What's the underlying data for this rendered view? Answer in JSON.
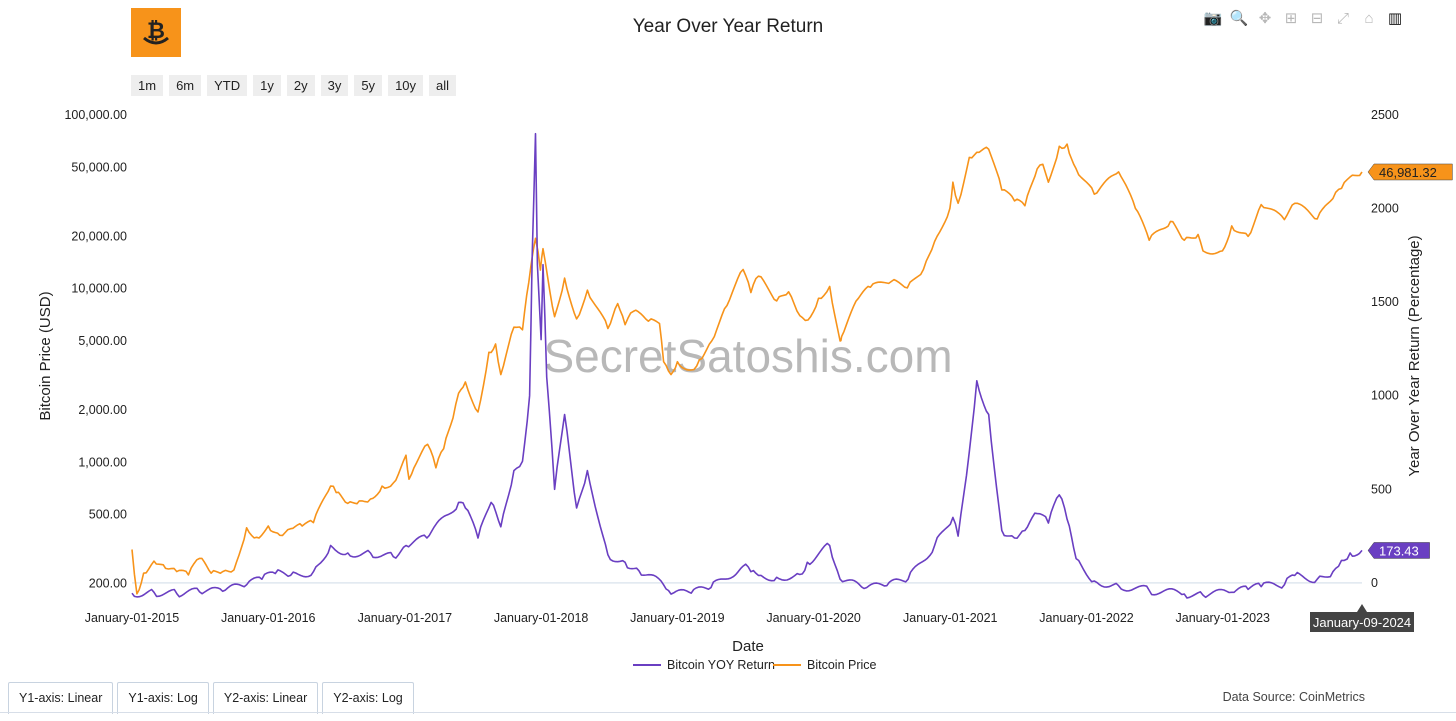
{
  "logo": {
    "name": "bitcoin-smile-logo",
    "color": "#f7931a"
  },
  "modebar": [
    {
      "name": "camera-icon",
      "glyph": "📷"
    },
    {
      "name": "zoom-icon",
      "glyph": "🔍"
    },
    {
      "name": "pan-icon",
      "glyph": "✥"
    },
    {
      "name": "zoom-in-icon",
      "glyph": "⊞"
    },
    {
      "name": "zoom-out-icon",
      "glyph": "⊟"
    },
    {
      "name": "autoscale-icon",
      "glyph": "⤢"
    },
    {
      "name": "home-icon",
      "glyph": "⌂"
    },
    {
      "name": "plotly-logo-icon",
      "glyph": "▥"
    }
  ],
  "range_buttons": [
    "1m",
    "6m",
    "YTD",
    "1y",
    "2y",
    "3y",
    "5y",
    "10y",
    "all"
  ],
  "tabs": [
    "Y1-axis: Linear",
    "Y1-axis: Log",
    "Y2-axis: Linear",
    "Y2-axis: Log"
  ],
  "source": "Data Source: CoinMetrics",
  "watermark": "SecretSatoshis.com",
  "colors": {
    "price": "#f7931a",
    "yoy": "#6a3fc2",
    "axisline": "#dfe7ef"
  },
  "chart_data": {
    "type": "line",
    "title": "Year Over Year Return",
    "xlabel": "Date",
    "ylabel": "Bitcoin Price (USD)",
    "y2label": "Year Over Year Return (Percentage)",
    "x_range": [
      "2015-01-01",
      "2024-01-09"
    ],
    "x_ticks": [
      "January-01-2015",
      "January-01-2016",
      "January-01-2017",
      "January-01-2018",
      "January-01-2019",
      "January-01-2020",
      "January-01-2021",
      "January-01-2022",
      "January-01-2023"
    ],
    "y_scale": "log",
    "y_ticks": [
      200,
      500,
      1000,
      2000,
      5000,
      10000,
      20000,
      50000,
      100000
    ],
    "y_tick_labels": [
      "200.00",
      "500.00",
      "1,000.00",
      "2,000.00",
      "5,000.00",
      "10,000.00",
      "20,000.00",
      "50,000.00",
      "100,000.00"
    ],
    "y_range": [
      170,
      100000
    ],
    "y2_ticks": [
      0,
      500,
      1000,
      1500,
      2000,
      2500
    ],
    "y2_tick_labels": [
      "0",
      "500",
      "1000",
      "1500",
      "2000",
      "2500"
    ],
    "y2_range": [
      -70,
      2500
    ],
    "legend": [
      "Bitcoin YOY Return",
      "Bitcoin Price"
    ],
    "hover_x": "January-09-2024",
    "last_price_label": "46,981.32",
    "last_yoy_label": "173.43",
    "series": [
      {
        "name": "Bitcoin Price",
        "axis": "y1",
        "points": [
          [
            "2015-01-01",
            315
          ],
          [
            "2015-01-14",
            175
          ],
          [
            "2015-02-01",
            230
          ],
          [
            "2015-03-01",
            270
          ],
          [
            "2015-04-01",
            245
          ],
          [
            "2015-05-01",
            235
          ],
          [
            "2015-06-01",
            225
          ],
          [
            "2015-07-01",
            280
          ],
          [
            "2015-08-01",
            230
          ],
          [
            "2015-09-01",
            235
          ],
          [
            "2015-10-01",
            240
          ],
          [
            "2015-11-04",
            420
          ],
          [
            "2015-12-01",
            370
          ],
          [
            "2016-01-01",
            430
          ],
          [
            "2016-02-01",
            380
          ],
          [
            "2016-03-01",
            415
          ],
          [
            "2016-04-01",
            430
          ],
          [
            "2016-05-01",
            450
          ],
          [
            "2016-06-16",
            730
          ],
          [
            "2016-07-01",
            670
          ],
          [
            "2016-08-01",
            580
          ],
          [
            "2016-09-01",
            600
          ],
          [
            "2016-10-01",
            615
          ],
          [
            "2016-11-01",
            730
          ],
          [
            "2016-12-01",
            760
          ],
          [
            "2017-01-04",
            1100
          ],
          [
            "2017-01-12",
            800
          ],
          [
            "2017-02-01",
            990
          ],
          [
            "2017-03-03",
            1270
          ],
          [
            "2017-03-25",
            930
          ],
          [
            "2017-04-15",
            1200
          ],
          [
            "2017-05-10",
            1800
          ],
          [
            "2017-05-25",
            2500
          ],
          [
            "2017-06-12",
            2900
          ],
          [
            "2017-07-16",
            1950
          ],
          [
            "2017-08-14",
            4300
          ],
          [
            "2017-09-01",
            4800
          ],
          [
            "2017-09-15",
            3200
          ],
          [
            "2017-10-20",
            6000
          ],
          [
            "2017-11-12",
            5800
          ],
          [
            "2017-11-29",
            10900
          ],
          [
            "2017-12-17",
            19500
          ],
          [
            "2017-12-30",
            12800
          ],
          [
            "2018-01-06",
            17000
          ],
          [
            "2018-02-06",
            6900
          ],
          [
            "2018-03-05",
            11500
          ],
          [
            "2018-04-06",
            6700
          ],
          [
            "2018-05-05",
            9800
          ],
          [
            "2018-06-29",
            5900
          ],
          [
            "2018-07-25",
            8200
          ],
          [
            "2018-08-14",
            6200
          ],
          [
            "2018-09-05",
            7400
          ],
          [
            "2018-10-15",
            6500
          ],
          [
            "2018-11-14",
            6300
          ],
          [
            "2018-11-25",
            3800
          ],
          [
            "2018-12-15",
            3200
          ],
          [
            "2019-01-01",
            3800
          ],
          [
            "2019-02-07",
            3400
          ],
          [
            "2019-03-01",
            3900
          ],
          [
            "2019-04-03",
            5000
          ],
          [
            "2019-05-14",
            8000
          ],
          [
            "2019-06-26",
            12900
          ],
          [
            "2019-07-17",
            9500
          ],
          [
            "2019-08-06",
            11800
          ],
          [
            "2019-09-24",
            8500
          ],
          [
            "2019-10-26",
            9600
          ],
          [
            "2019-11-25",
            7000
          ],
          [
            "2019-12-17",
            6600
          ],
          [
            "2020-01-14",
            8800
          ],
          [
            "2020-02-13",
            10300
          ],
          [
            "2020-03-12",
            5000
          ],
          [
            "2020-03-16",
            5300
          ],
          [
            "2020-04-30",
            8800
          ],
          [
            "2020-06-01",
            10200
          ],
          [
            "2020-07-27",
            11000
          ],
          [
            "2020-09-08",
            10100
          ],
          [
            "2020-10-21",
            12900
          ],
          [
            "2020-11-20",
            18700
          ],
          [
            "2020-12-31",
            29000
          ],
          [
            "2021-01-08",
            41000
          ],
          [
            "2021-01-22",
            31000
          ],
          [
            "2021-02-21",
            57000
          ],
          [
            "2021-03-13",
            61000
          ],
          [
            "2021-04-14",
            63500
          ],
          [
            "2021-05-19",
            37000
          ],
          [
            "2021-06-22",
            32000
          ],
          [
            "2021-07-20",
            30000
          ],
          [
            "2021-08-22",
            49000
          ],
          [
            "2021-09-06",
            52000
          ],
          [
            "2021-09-21",
            41000
          ],
          [
            "2021-10-20",
            66000
          ],
          [
            "2021-11-10",
            68000
          ],
          [
            "2021-12-04",
            49000
          ],
          [
            "2022-01-22",
            35000
          ],
          [
            "2022-03-28",
            47000
          ],
          [
            "2022-05-12",
            29000
          ],
          [
            "2022-06-18",
            19000
          ],
          [
            "2022-08-14",
            24400
          ],
          [
            "2022-09-20",
            19000
          ],
          [
            "2022-10-27",
            20500
          ],
          [
            "2022-11-09",
            16500
          ],
          [
            "2022-12-31",
            16500
          ],
          [
            "2023-01-25",
            23000
          ],
          [
            "2023-03-10",
            20000
          ],
          [
            "2023-04-14",
            30500
          ],
          [
            "2023-06-15",
            25000
          ],
          [
            "2023-07-13",
            31000
          ],
          [
            "2023-09-11",
            25200
          ],
          [
            "2023-10-23",
            33000
          ],
          [
            "2023-11-15",
            37800
          ],
          [
            "2023-12-08",
            44000
          ],
          [
            "2024-01-09",
            46981.32
          ]
        ]
      },
      {
        "name": "Bitcoin YOY Return",
        "axis": "y2",
        "points": [
          [
            "2015-01-01",
            -55
          ],
          [
            "2015-03-01",
            -50
          ],
          [
            "2015-05-01",
            -57
          ],
          [
            "2015-07-01",
            -48
          ],
          [
            "2015-09-01",
            -45
          ],
          [
            "2015-11-04",
            -10
          ],
          [
            "2015-12-15",
            20
          ],
          [
            "2016-01-20",
            50
          ],
          [
            "2016-03-01",
            40
          ],
          [
            "2016-05-01",
            60
          ],
          [
            "2016-06-16",
            200
          ],
          [
            "2016-08-01",
            160
          ],
          [
            "2016-10-01",
            160
          ],
          [
            "2016-12-01",
            140
          ],
          [
            "2017-01-04",
            200
          ],
          [
            "2017-03-01",
            240
          ],
          [
            "2017-05-25",
            430
          ],
          [
            "2017-06-12",
            400
          ],
          [
            "2017-07-16",
            240
          ],
          [
            "2017-08-20",
            430
          ],
          [
            "2017-09-15",
            300
          ],
          [
            "2017-10-20",
            600
          ],
          [
            "2017-11-12",
            650
          ],
          [
            "2017-12-01",
            1000
          ],
          [
            "2017-12-08",
            1750
          ],
          [
            "2017-12-17",
            2400
          ],
          [
            "2017-12-22",
            1700
          ],
          [
            "2018-01-01",
            1300
          ],
          [
            "2018-01-06",
            1700
          ],
          [
            "2018-01-16",
            1100
          ],
          [
            "2018-02-06",
            500
          ],
          [
            "2018-03-05",
            900
          ],
          [
            "2018-04-06",
            400
          ],
          [
            "2018-05-05",
            600
          ],
          [
            "2018-06-29",
            150
          ],
          [
            "2018-08-14",
            110
          ],
          [
            "2018-09-20",
            65
          ],
          [
            "2018-11-25",
            -10
          ],
          [
            "2018-12-15",
            -60
          ],
          [
            "2019-02-07",
            -55
          ],
          [
            "2019-04-01",
            -25
          ],
          [
            "2019-06-26",
            90
          ],
          [
            "2019-07-17",
            60
          ],
          [
            "2019-08-06",
            40
          ],
          [
            "2019-09-24",
            30
          ],
          [
            "2019-11-25",
            45
          ],
          [
            "2019-12-15",
            110
          ],
          [
            "2020-02-13",
            200
          ],
          [
            "2020-03-12",
            20
          ],
          [
            "2020-05-15",
            -30
          ],
          [
            "2020-07-15",
            -15
          ],
          [
            "2020-09-10",
            20
          ],
          [
            "2020-11-20",
            200
          ],
          [
            "2021-01-08",
            350
          ],
          [
            "2021-01-22",
            250
          ],
          [
            "2021-02-21",
            700
          ],
          [
            "2021-03-13",
            1080
          ],
          [
            "2021-04-14",
            900
          ],
          [
            "2021-05-19",
            280
          ],
          [
            "2021-06-22",
            240
          ],
          [
            "2021-07-20",
            280
          ],
          [
            "2021-08-22",
            370
          ],
          [
            "2021-09-21",
            320
          ],
          [
            "2021-10-20",
            470
          ],
          [
            "2021-11-10",
            340
          ],
          [
            "2021-12-04",
            130
          ],
          [
            "2022-01-22",
            10
          ],
          [
            "2022-03-28",
            -15
          ],
          [
            "2022-06-18",
            -40
          ],
          [
            "2022-09-20",
            -60
          ],
          [
            "2022-11-09",
            -65
          ],
          [
            "2023-01-25",
            -50
          ],
          [
            "2023-03-10",
            -35
          ],
          [
            "2023-04-14",
            -20
          ],
          [
            "2023-06-15",
            -10
          ],
          [
            "2023-07-13",
            40
          ],
          [
            "2023-09-11",
            20
          ],
          [
            "2023-10-23",
            60
          ],
          [
            "2023-11-15",
            120
          ],
          [
            "2023-12-08",
            160
          ],
          [
            "2024-01-09",
            173.43
          ]
        ]
      }
    ]
  }
}
